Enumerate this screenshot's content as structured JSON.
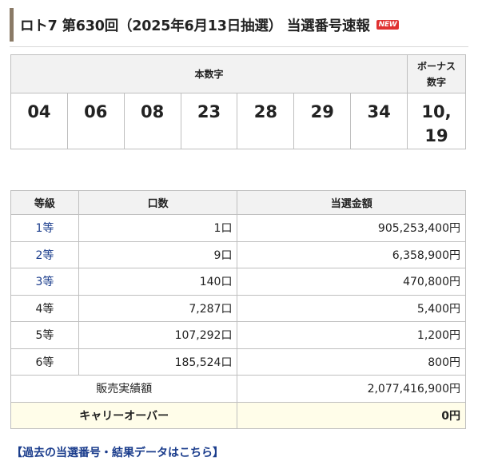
{
  "header": {
    "title": "ロト7 第630回（2025年6月13日抽選） 当選番号速報",
    "badge": "NEW"
  },
  "numbers": {
    "main_label": "本数字",
    "bonus_label_line1": "ボーナス",
    "bonus_label_line2": "数字",
    "main": [
      "04",
      "06",
      "08",
      "23",
      "28",
      "29",
      "34"
    ],
    "bonus_line1": "10,",
    "bonus_line2": "19"
  },
  "prizes": {
    "headers": {
      "grade": "等級",
      "count": "口数",
      "amount": "当選金額"
    },
    "rows": [
      {
        "grade": "1等",
        "count": "1口",
        "amount": "905,253,400円"
      },
      {
        "grade": "2等",
        "count": "9口",
        "amount": "6,358,900円"
      },
      {
        "grade": "3等",
        "count": "140口",
        "amount": "470,800円"
      },
      {
        "grade": "4等",
        "count": "7,287口",
        "amount": "5,400円"
      },
      {
        "grade": "5等",
        "count": "107,292口",
        "amount": "1,200円"
      },
      {
        "grade": "6等",
        "count": "185,524口",
        "amount": "800円"
      }
    ],
    "sales_label": "販売実績額",
    "sales_value": "2,077,416,900円",
    "carryover_label": "キャリーオーバー",
    "carryover_value": "0円"
  },
  "footer": {
    "archive_link": "【過去の当選番号・結果データはこちら】"
  },
  "colors": {
    "accent_bar": "#8a7a66",
    "link": "#1a3c8c",
    "badge": "#e03131",
    "header_bg": "#f2f2f2",
    "carry_bg": "#fffde9"
  }
}
